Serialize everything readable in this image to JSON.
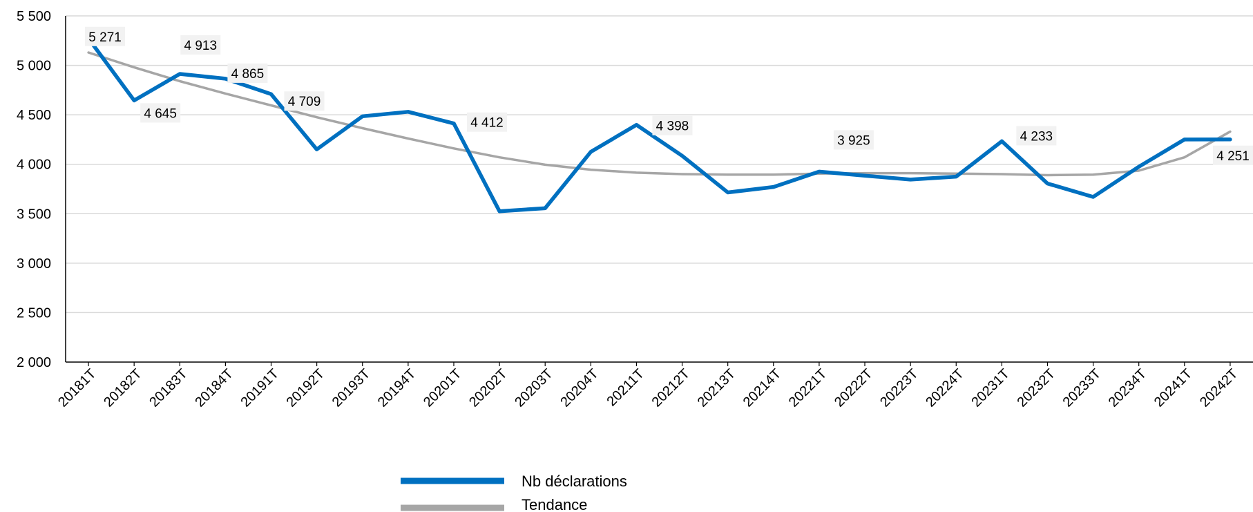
{
  "chart_data": {
    "type": "line",
    "categories": [
      "20181T",
      "20182T",
      "20183T",
      "20184T",
      "20191T",
      "20192T",
      "20193T",
      "20194T",
      "20201T",
      "20202T",
      "20203T",
      "20204T",
      "20211T",
      "20212T",
      "20213T",
      "20214T",
      "20221T",
      "20222T",
      "20223T",
      "20224T",
      "20231T",
      "20232T",
      "20233T",
      "20234T",
      "20241T",
      "20242T"
    ],
    "y_ticks": [
      "2 000",
      "2 500",
      "3 000",
      "3 500",
      "4 000",
      "4 500",
      "5 000",
      "5 500"
    ],
    "ylim": [
      2000,
      5500
    ],
    "grid": true,
    "legend_position": "bottom",
    "series": [
      {
        "name": "Nb déclarations",
        "color": "#0070C0",
        "values": [
          5271,
          4645,
          4913,
          4865,
          4709,
          4150,
          4485,
          4530,
          4412,
          3525,
          3555,
          4125,
          4398,
          4085,
          3715,
          3770,
          3925,
          3885,
          3845,
          3875,
          4233,
          3805,
          3670,
          3975,
          4250,
          4251
        ]
      },
      {
        "name": "Tendance",
        "color": "#A6A6A6",
        "values": [
          5130,
          4980,
          4840,
          4715,
          4595,
          4475,
          4365,
          4260,
          4160,
          4070,
          3995,
          3945,
          3915,
          3900,
          3895,
          3895,
          3905,
          3910,
          3910,
          3905,
          3900,
          3890,
          3895,
          3935,
          4070,
          4330
        ]
      }
    ],
    "data_labels": [
      {
        "index": 0,
        "text": "5 271"
      },
      {
        "index": 1,
        "text": "4 645"
      },
      {
        "index": 2,
        "text": "4 913"
      },
      {
        "index": 3,
        "text": "4 865"
      },
      {
        "index": 4,
        "text": "4 709"
      },
      {
        "index": 8,
        "text": "4 412"
      },
      {
        "index": 12,
        "text": "4 398"
      },
      {
        "index": 16,
        "text": "3 925"
      },
      {
        "index": 20,
        "text": "4 233"
      },
      {
        "index": 25,
        "text": "4 251"
      }
    ]
  }
}
